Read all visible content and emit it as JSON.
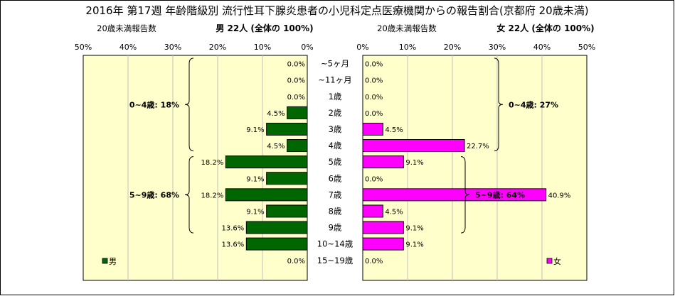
{
  "title": "2016年 第17週 年齢階級別 流行性耳下腺炎患者の小児科定点医療機関からの報告割合(京都府 20歳未満)",
  "left_header": {
    "sub": "20歳未満報告数",
    "label": "男 22人 (全体の 100%)"
  },
  "right_header": {
    "sub": "20歳未満報告数",
    "label": "女 22人 (全体の 100%)"
  },
  "colors": {
    "male": "#006600",
    "female": "#ff00ff",
    "plot_bg": "#ffffcc",
    "grid": "#c0c0c0"
  },
  "chart_data": {
    "type": "bar",
    "orientation": "horizontal-butterfly",
    "categories": [
      "~5ヶ月",
      "~11ヶ月",
      "1歳",
      "2歳",
      "3歳",
      "4歳",
      "5歳",
      "6歳",
      "7歳",
      "8歳",
      "9歳",
      "10~14歳",
      "15~19歳"
    ],
    "series": [
      {
        "name": "男",
        "values": [
          0.0,
          0.0,
          0.0,
          4.5,
          9.1,
          4.5,
          18.2,
          9.1,
          18.2,
          9.1,
          13.6,
          13.6,
          0.0
        ],
        "labels": [
          "0.0%",
          "0.0%",
          "0.0%",
          "4.5%",
          "9.1%",
          "4.5%",
          "18.2%",
          "9.1%",
          "18.2%",
          "9.1%",
          "13.6%",
          "13.6%",
          "0.0%"
        ]
      },
      {
        "name": "女",
        "values": [
          0.0,
          0.0,
          0.0,
          0.0,
          4.5,
          22.7,
          9.1,
          0.0,
          40.9,
          4.5,
          9.1,
          9.1,
          0.0
        ],
        "labels": [
          "0.0%",
          "0.0%",
          "0.0%",
          "0.0%",
          "4.5%",
          "22.7%",
          "9.1%",
          "0.0%",
          "40.9%",
          "4.5%",
          "9.1%",
          "9.1%",
          "0.0%"
        ]
      }
    ],
    "xlim": [
      0,
      50
    ],
    "x_ticks": [
      "0%",
      "10%",
      "20%",
      "30%",
      "40%",
      "50%"
    ],
    "grid": true,
    "legend": "bottom-corners",
    "annotations": {
      "male": [
        {
          "text": "0~4歳: 18%",
          "from": 0,
          "to": 5
        },
        {
          "text": "5~9歳: 68%",
          "from": 6,
          "to": 10
        }
      ],
      "female": [
        {
          "text": "0~4歳: 27%",
          "from": 0,
          "to": 5
        },
        {
          "text": "5~9歳: 64%",
          "from": 6,
          "to": 10
        }
      ]
    }
  }
}
